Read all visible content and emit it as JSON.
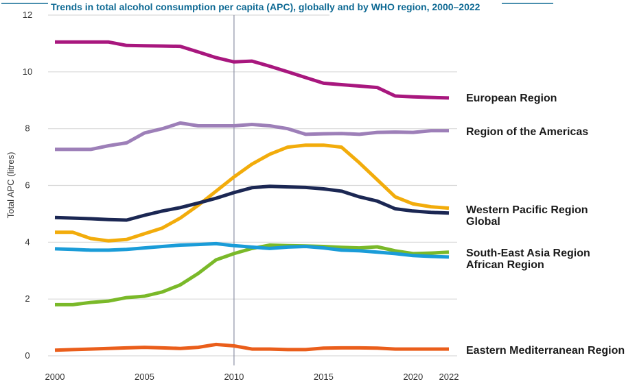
{
  "chart_data": {
    "type": "line",
    "title": "Trends in total alcohol consumption per capita (APC), globally and by WHO region, 2000–2022",
    "xlabel": "",
    "ylabel": "Total APC (litres)",
    "xlim": [
      2000,
      2022
    ],
    "ylim": [
      0,
      12
    ],
    "yticks": [
      0,
      2,
      4,
      6,
      8,
      10,
      12
    ],
    "xticks": [
      2000,
      2005,
      2010,
      2015,
      2020,
      2022
    ],
    "grid": "horizontal",
    "reference_line_x": 2010,
    "legend_placement": "right (direct labels)",
    "x": [
      2000,
      2001,
      2002,
      2003,
      2004,
      2005,
      2006,
      2007,
      2008,
      2009,
      2010,
      2011,
      2012,
      2013,
      2014,
      2015,
      2016,
      2017,
      2018,
      2019,
      2020,
      2021,
      2022
    ],
    "series": [
      {
        "name": "European Region",
        "color": "#a8177e",
        "values": [
          11.05,
          11.05,
          11.05,
          11.05,
          10.93,
          10.92,
          10.91,
          10.9,
          10.7,
          10.5,
          10.35,
          10.38,
          10.2,
          10.0,
          9.8,
          9.6,
          9.55,
          9.5,
          9.45,
          9.15,
          9.12,
          9.1,
          9.08
        ]
      },
      {
        "name": "Region of the Americas",
        "color": "#9d7fb8",
        "values": [
          7.27,
          7.27,
          7.27,
          7.4,
          7.5,
          7.85,
          8.0,
          8.2,
          8.1,
          8.1,
          8.1,
          8.15,
          8.1,
          8.0,
          7.8,
          7.82,
          7.83,
          7.8,
          7.87,
          7.88,
          7.87,
          7.93,
          7.93
        ]
      },
      {
        "name": "Western Pacific Region",
        "color": "#f2ac0b",
        "values": [
          4.35,
          4.35,
          4.13,
          4.05,
          4.1,
          4.3,
          4.5,
          4.85,
          5.3,
          5.8,
          6.3,
          6.75,
          7.1,
          7.35,
          7.42,
          7.42,
          7.35,
          6.8,
          6.2,
          5.6,
          5.35,
          5.25,
          5.2
        ]
      },
      {
        "name": "Global",
        "color": "#1b2753",
        "values": [
          4.87,
          4.85,
          4.83,
          4.8,
          4.78,
          4.95,
          5.1,
          5.22,
          5.38,
          5.55,
          5.75,
          5.92,
          5.97,
          5.95,
          5.93,
          5.88,
          5.8,
          5.6,
          5.45,
          5.18,
          5.1,
          5.05,
          5.03
        ]
      },
      {
        "name": "South-East Asia Region",
        "color": "#7ab929",
        "values": [
          1.8,
          1.8,
          1.88,
          1.93,
          2.05,
          2.1,
          2.25,
          2.5,
          2.9,
          3.38,
          3.6,
          3.78,
          3.9,
          3.88,
          3.87,
          3.85,
          3.82,
          3.8,
          3.84,
          3.7,
          3.6,
          3.62,
          3.65
        ]
      },
      {
        "name": "African Region",
        "color": "#1a9cd8",
        "values": [
          3.77,
          3.75,
          3.72,
          3.72,
          3.75,
          3.8,
          3.85,
          3.9,
          3.92,
          3.95,
          3.88,
          3.83,
          3.78,
          3.83,
          3.85,
          3.8,
          3.72,
          3.7,
          3.65,
          3.6,
          3.53,
          3.5,
          3.48
        ]
      },
      {
        "name": "Eastern Mediterranean Region",
        "color": "#ea5e1b",
        "values": [
          0.2,
          0.22,
          0.24,
          0.26,
          0.28,
          0.3,
          0.28,
          0.26,
          0.3,
          0.4,
          0.35,
          0.24,
          0.24,
          0.22,
          0.22,
          0.27,
          0.28,
          0.28,
          0.27,
          0.24,
          0.24,
          0.24,
          0.24
        ]
      }
    ],
    "legend_labels": [
      {
        "text": "European Region",
        "anchor_value": 9.08
      },
      {
        "text": "Region of the Americas",
        "anchor_value": 7.93
      },
      {
        "text": "Western Pacific Region",
        "anchor_value": 5.2
      },
      {
        "text": "Global",
        "anchor_value": 5.03
      },
      {
        "text": "South-East Asia Region",
        "anchor_value": 3.65
      },
      {
        "text": "African Region",
        "anchor_value": 3.48
      },
      {
        "text": "Eastern Mediterranean Region",
        "anchor_value": 0.24
      }
    ]
  },
  "colors": {
    "title": "#0f6a94",
    "grid": "#d9d9d9",
    "reference_line": "#8a8fa3",
    "text": "#333333"
  }
}
